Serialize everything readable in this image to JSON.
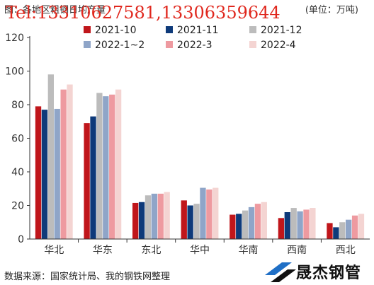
{
  "header": {
    "title": "图：各地区粗钢日均产量",
    "unit": "(单位：万吨)",
    "watermark": "Tel:13310627581,13306359644"
  },
  "footer": {
    "source": "数据来源：国家统计局、我的钢铁网整理",
    "logo_text": "晟杰钢管"
  },
  "colors": [
    "#c0161b",
    "#0e3a7a",
    "#bcbcbc",
    "#8fa5c8",
    "#ee9aa0",
    "#f4d4d2"
  ],
  "chart_data": {
    "type": "bar",
    "categories": [
      "华北",
      "华东",
      "东北",
      "华中",
      "华南",
      "西南",
      "西北"
    ],
    "series": [
      {
        "name": "2021-10",
        "values": [
          79,
          69,
          21.5,
          23,
          14.5,
          12.5,
          9.5
        ]
      },
      {
        "name": "2021-11",
        "values": [
          77,
          73,
          22,
          20,
          15,
          16,
          7
        ]
      },
      {
        "name": "2021-12",
        "values": [
          98,
          87,
          26,
          21,
          17,
          18.5,
          10
        ]
      },
      {
        "name": "2022-1~2",
        "values": [
          77.5,
          85,
          27,
          30.5,
          19,
          16.5,
          11.5
        ]
      },
      {
        "name": "2022-3",
        "values": [
          89,
          86,
          27,
          29.5,
          21,
          17.5,
          14
        ]
      },
      {
        "name": "2022-4",
        "values": [
          92,
          89,
          28,
          30.5,
          22,
          18.5,
          15
        ]
      }
    ],
    "yticks": [
      0,
      20,
      40,
      60,
      80,
      100,
      120
    ],
    "ylim": [
      0,
      120
    ],
    "legend_position": "top",
    "grid": false
  }
}
